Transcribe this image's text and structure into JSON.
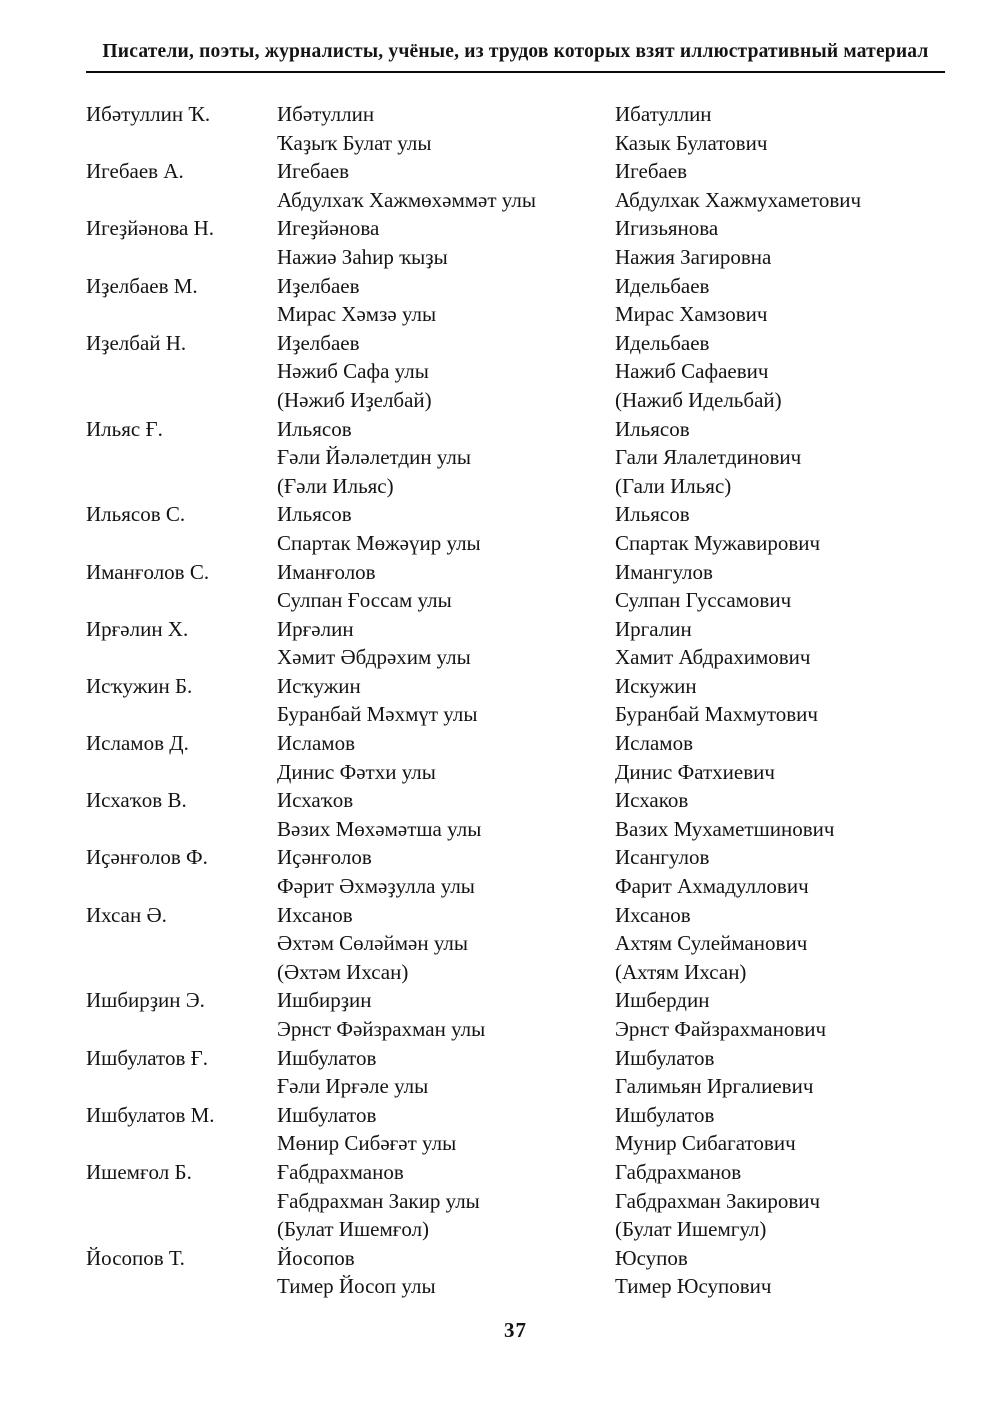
{
  "header": {
    "title": "Писатели, поэты, журналисты, учёные, из трудов которых взят иллюстративный материал"
  },
  "table": {
    "rows": [
      {
        "short": "Ибәтуллин Ҡ.",
        "bashkir": [
          "Ибәтуллин",
          "Ҡаҙыҡ Булат улы"
        ],
        "russian": [
          "Ибатуллин",
          "Казык Булатович"
        ]
      },
      {
        "short": "Игебаев А.",
        "bashkir": [
          "Игебаев",
          "Абдулхаҡ Хажмөхәммәт улы"
        ],
        "russian": [
          "Игебаев",
          "Абдулхак Хажмухаметович"
        ]
      },
      {
        "short": "Игеҙйәнова Н.",
        "bashkir": [
          "Игеҙйәнова",
          "Нажиә Заһир ҡыҙы"
        ],
        "russian": [
          "Игизьянова",
          "Нажия Загировна"
        ]
      },
      {
        "short": "Иҙелбаев М.",
        "bashkir": [
          "Иҙелбаев",
          "Мирас Хәмзә улы"
        ],
        "russian": [
          "Идельбаев",
          "Мирас Хамзович"
        ]
      },
      {
        "short": "Иҙелбай Н.",
        "bashkir": [
          "Иҙелбаев",
          "Нәжиб Сафа улы",
          "(Нәжиб Иҙелбай)"
        ],
        "russian": [
          "Идельбаев",
          "Нажиб Сафаевич",
          "(Нажиб Идельбай)"
        ]
      },
      {
        "short": "Ильяс Ғ.",
        "bashkir": [
          "Ильясов",
          "Ғәли Йәләлетдин улы",
          "(Ғәли Ильяс)"
        ],
        "russian": [
          "Ильясов",
          "Гали Ялалетдинович",
          "(Гали Ильяс)"
        ]
      },
      {
        "short": "Ильясов С.",
        "bashkir": [
          "Ильясов",
          "Спартак Мөжәүир улы"
        ],
        "russian": [
          "Ильясов",
          "Спартак Мужавирович"
        ]
      },
      {
        "short": "Иманғолов С.",
        "bashkir": [
          "Иманғолов",
          "Сулпан Ғоссам улы"
        ],
        "russian": [
          "Имангулов",
          "Сулпан Гуссамович"
        ]
      },
      {
        "short": "Ирғәлин Х.",
        "bashkir": [
          "Ирғәлин",
          "Хәмит Әбдрәхим улы"
        ],
        "russian": [
          "Иргалин",
          "Хамит Абдрахимович"
        ]
      },
      {
        "short": "Исҡужин Б.",
        "bashkir": [
          "Исҡужин",
          "Буранбай Мәхмүт улы"
        ],
        "russian": [
          "Искужин",
          "Буранбай Махмутович"
        ]
      },
      {
        "short": "Исламов Д.",
        "bashkir": [
          "Исламов",
          "Динис Фәтхи улы"
        ],
        "russian": [
          "Исламов",
          "Динис Фатхиевич"
        ]
      },
      {
        "short": "Исхаҡов В.",
        "bashkir": [
          "Исхаҡов",
          "Вәзих Мөхәмәтша улы"
        ],
        "russian": [
          "Исхаков",
          "Вазих Мухаметшинович"
        ]
      },
      {
        "short": "Иҫәнғолов Ф.",
        "bashkir": [
          "Иҫәнғолов",
          "Фәрит Әхмәҙулла улы"
        ],
        "russian": [
          "Исангулов",
          "Фарит Ахмадуллович"
        ]
      },
      {
        "short": "Ихсан Ә.",
        "bashkir": [
          "Ихсанов",
          "Әхтәм Сөләймән улы",
          "(Әхтәм Ихсан)"
        ],
        "russian": [
          "Ихсанов",
          "Ахтям Сулейманович",
          "(Ахтям Ихсан)"
        ]
      },
      {
        "short": "Ишбирҙин Э.",
        "bashkir": [
          "Ишбирҙин",
          "Эрнст Фәйзрахман улы"
        ],
        "russian": [
          "Ишбердин",
          "Эрнст Файзрахманович"
        ]
      },
      {
        "short": "Ишбулатов Ғ.",
        "bashkir": [
          "Ишбулатов",
          "Ғәли Ирғәле улы"
        ],
        "russian": [
          "Ишбулатов",
          "Галимьян Иргалиевич"
        ]
      },
      {
        "short": "Ишбулатов М.",
        "bashkir": [
          "Ишбулатов",
          "Мөнир Сибәғәт улы"
        ],
        "russian": [
          "Ишбулатов",
          "Мунир Сибагатович"
        ]
      },
      {
        "short": "Ишемғол Б.",
        "bashkir": [
          "Ғабдрахманов",
          "Ғабдрахман Закир улы",
          "(Булат Ишемғол)"
        ],
        "russian": [
          "Габдрахманов",
          "Габдрахман Закирович",
          "(Булат Ишемгул)"
        ]
      },
      {
        "short": "Йосопов Т.",
        "bashkir": [
          "Йосопов",
          "Тимер Йосоп улы"
        ],
        "russian": [
          "Юсупов",
          "Тимер Юсупович"
        ]
      }
    ]
  },
  "footer": {
    "page_number": "37"
  }
}
